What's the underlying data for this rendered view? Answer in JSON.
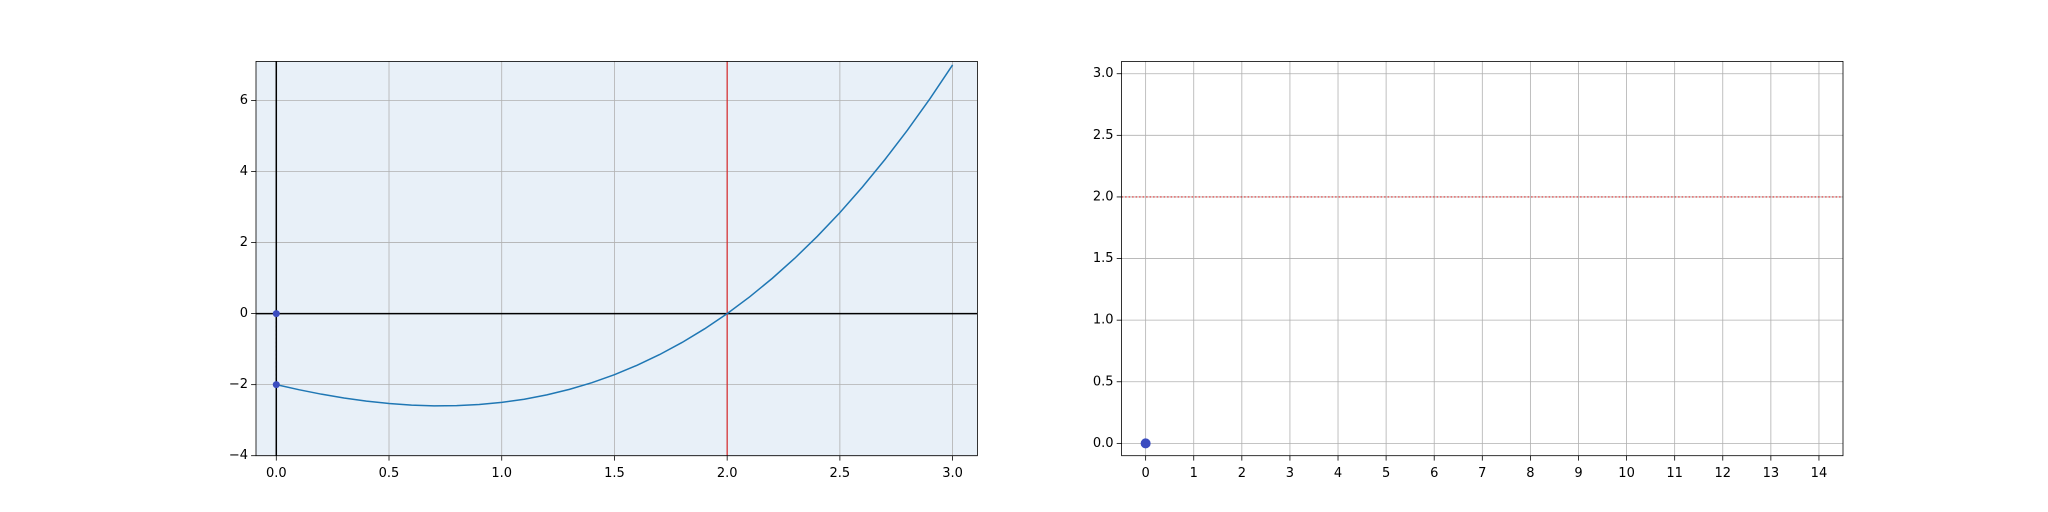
{
  "chart_data": [
    {
      "type": "line",
      "x": [
        0,
        0.1,
        0.2,
        0.3,
        0.4,
        0.5,
        0.6,
        0.7,
        0.8,
        0.9,
        1.0,
        1.1,
        1.2,
        1.3,
        1.4,
        1.5,
        1.6,
        1.7,
        1.8,
        1.9,
        2.0,
        2.1,
        2.2,
        2.3,
        2.4,
        2.5,
        2.6,
        2.7,
        2.8,
        2.9,
        3.0
      ],
      "series": [
        {
          "color": "#1f77b4",
          "values": [
            -2,
            -2.142,
            -2.268,
            -2.376,
            -2.464,
            -2.531,
            -2.576,
            -2.597,
            -2.592,
            -2.56,
            -2.5,
            -2.41,
            -2.288,
            -2.133,
            -1.944,
            -1.719,
            -1.456,
            -1.154,
            -0.812,
            -0.428,
            0,
            0.473,
            0.992,
            1.559,
            2.176,
            2.844,
            3.564,
            4.338,
            5.168,
            6.055,
            7
          ]
        }
      ],
      "points": {
        "x": [
          0,
          0
        ],
        "y": [
          0,
          -2
        ],
        "color": "#3b4cc0"
      },
      "axhline": {
        "y": 0,
        "color": "#000000"
      },
      "axvline": {
        "x": 0,
        "color": "#000000"
      },
      "vline": {
        "x": 2,
        "color": "#d62728"
      },
      "background": "#e8f0f8",
      "xlim": [
        -0.09,
        3.11
      ],
      "ylim": [
        -4,
        7.1
      ],
      "xticks": [
        {
          "value": 0,
          "label": "0.0"
        },
        0.5,
        {
          "value": 1,
          "label": "1.0"
        },
        1.5,
        {
          "value": 2,
          "label": "2.0"
        },
        2.5,
        {
          "value": 3,
          "label": "3.0"
        }
      ],
      "yticks": [
        {
          "value": -4,
          "label": "−4"
        },
        {
          "value": -2,
          "label": "−2"
        },
        0,
        2,
        4,
        6
      ],
      "grid": true
    },
    {
      "type": "scatter",
      "x": [
        0
      ],
      "values": [
        0
      ],
      "color": "#3b4cc0",
      "hline": {
        "y": 2,
        "color": "#d62728"
      },
      "background": "#ffffff",
      "xlim": [
        -0.5,
        14.5
      ],
      "ylim": [
        -0.1,
        3.1
      ],
      "xticks": [
        0,
        1,
        2,
        3,
        4,
        5,
        6,
        7,
        8,
        9,
        10,
        11,
        12,
        13,
        14
      ],
      "yticks": [
        {
          "value": 0,
          "label": "0.0"
        },
        0.5,
        {
          "value": 1,
          "label": "1.0"
        },
        1.5,
        {
          "value": 2,
          "label": "2.0"
        },
        2.5,
        {
          "value": 3,
          "label": "3.0"
        }
      ],
      "grid": true
    }
  ]
}
